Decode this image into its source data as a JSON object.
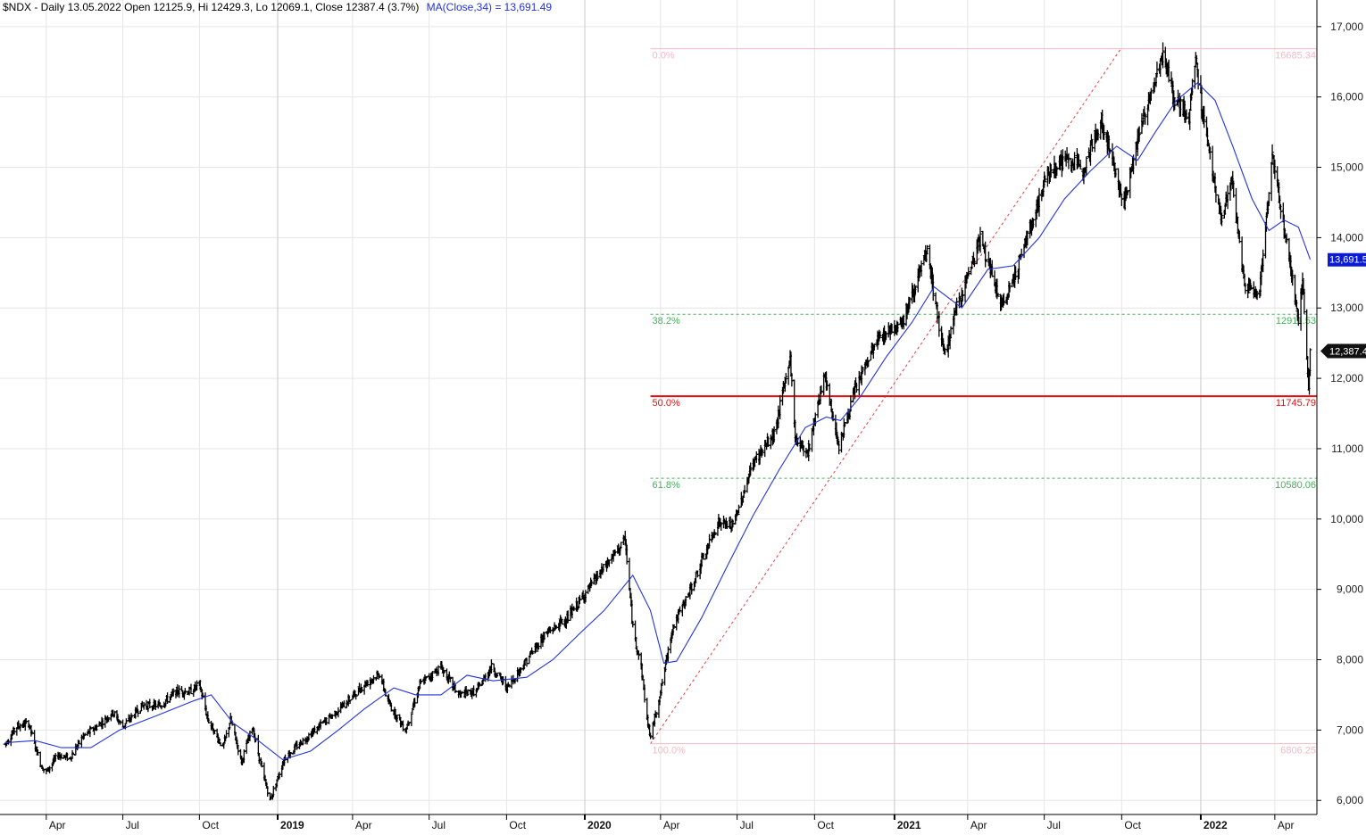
{
  "header": {
    "title": "$NDX - Daily 13.05.2022 Open 12125.9, Hi 12429.3, Lo 12069.1, Close 12387.4 (3.7%)",
    "ma_label": "MA(Close,34) = 13,691.49"
  },
  "colors": {
    "price": "#000000",
    "ma": "#2233dd",
    "grid": "#e6e6e6",
    "year_line": "#c8c8c8",
    "fib_outer": "#f4b8c4",
    "fib_green": "#43b05a",
    "fib_main": "#e01010",
    "trend": "#e84040",
    "ma_tag_bg": "#0a1ad6",
    "close_tag_bg": "#111111"
  },
  "badges": {
    "ma_value": "13,691.5",
    "close_value": "12,387.4"
  },
  "chart_data": {
    "type": "line",
    "title": "$NDX - Daily 13.05.2022",
    "ylim": [
      5800,
      17150
    ],
    "yscale": "linear",
    "grid": true,
    "y_ticks": [
      6000,
      7000,
      8000,
      9000,
      10000,
      11000,
      12000,
      13000,
      14000,
      15000,
      16000,
      17000
    ],
    "y_tick_labels": [
      "6,000",
      "7,000",
      "8,000",
      "9,000",
      "10,000",
      "11,000",
      "12,000",
      "13,000",
      "14,000",
      "15,000",
      "16,000",
      "17,000"
    ],
    "x_labels": [
      {
        "label": "Apr",
        "date": "2018-04-02",
        "year": false
      },
      {
        "label": "Jul",
        "date": "2018-07-02",
        "year": false
      },
      {
        "label": "Oct",
        "date": "2018-10-01",
        "year": false
      },
      {
        "label": "2019",
        "date": "2019-01-02",
        "year": true
      },
      {
        "label": "Apr",
        "date": "2019-04-01",
        "year": false
      },
      {
        "label": "Jul",
        "date": "2019-07-01",
        "year": false
      },
      {
        "label": "Oct",
        "date": "2019-10-01",
        "year": false
      },
      {
        "label": "2020",
        "date": "2020-01-02",
        "year": true
      },
      {
        "label": "Apr",
        "date": "2020-04-01",
        "year": false
      },
      {
        "label": "Jul",
        "date": "2020-07-01",
        "year": false
      },
      {
        "label": "Oct",
        "date": "2020-10-01",
        "year": false
      },
      {
        "label": "2021",
        "date": "2021-01-04",
        "year": true
      },
      {
        "label": "Apr",
        "date": "2021-04-01",
        "year": false
      },
      {
        "label": "Jul",
        "date": "2021-07-01",
        "year": false
      },
      {
        "label": "Oct",
        "date": "2021-10-01",
        "year": false
      },
      {
        "label": "2022",
        "date": "2022-01-03",
        "year": true
      },
      {
        "label": "Apr",
        "date": "2022-04-01",
        "year": false
      }
    ],
    "series": [
      {
        "name": "$NDX",
        "style": "ohlc-bars",
        "points": [
          [
            "2018-02-12",
            6800
          ],
          [
            "2018-02-26",
            7050
          ],
          [
            "2018-03-12",
            7100
          ],
          [
            "2018-03-19",
            6800
          ],
          [
            "2018-03-27",
            6500
          ],
          [
            "2018-04-02",
            6400
          ],
          [
            "2018-04-16",
            6650
          ],
          [
            "2018-04-30",
            6600
          ],
          [
            "2018-05-15",
            6900
          ],
          [
            "2018-06-01",
            7050
          ],
          [
            "2018-06-20",
            7250
          ],
          [
            "2018-07-02",
            7050
          ],
          [
            "2018-07-25",
            7350
          ],
          [
            "2018-08-15",
            7350
          ],
          [
            "2018-09-04",
            7550
          ],
          [
            "2018-09-20",
            7550
          ],
          [
            "2018-10-01",
            7650
          ],
          [
            "2018-10-11",
            7150
          ],
          [
            "2018-10-29",
            6750
          ],
          [
            "2018-11-07",
            7150
          ],
          [
            "2018-11-20",
            6550
          ],
          [
            "2018-12-03",
            7050
          ],
          [
            "2018-12-14",
            6450
          ],
          [
            "2018-12-24",
            6000
          ],
          [
            "2019-01-10",
            6600
          ],
          [
            "2019-02-01",
            6850
          ],
          [
            "2019-02-25",
            7100
          ],
          [
            "2019-03-21",
            7350
          ],
          [
            "2019-04-15",
            7650
          ],
          [
            "2019-05-03",
            7800
          ],
          [
            "2019-05-13",
            7400
          ],
          [
            "2019-06-03",
            7000
          ],
          [
            "2019-06-20",
            7650
          ],
          [
            "2019-07-15",
            7900
          ],
          [
            "2019-08-05",
            7500
          ],
          [
            "2019-08-26",
            7550
          ],
          [
            "2019-09-13",
            7900
          ],
          [
            "2019-10-02",
            7600
          ],
          [
            "2019-10-25",
            8000
          ],
          [
            "2019-11-15",
            8350
          ],
          [
            "2019-12-13",
            8600
          ],
          [
            "2020-01-15",
            9150
          ],
          [
            "2020-02-19",
            9700
          ],
          [
            "2020-02-28",
            8450
          ],
          [
            "2020-03-09",
            7900
          ],
          [
            "2020-03-16",
            7150
          ],
          [
            "2020-03-20",
            6900
          ],
          [
            "2020-04-01",
            7550
          ],
          [
            "2020-04-15",
            8450
          ],
          [
            "2020-05-05",
            8950
          ],
          [
            "2020-06-08",
            9950
          ],
          [
            "2020-06-26",
            9900
          ],
          [
            "2020-07-20",
            10800
          ],
          [
            "2020-08-14",
            11200
          ],
          [
            "2020-09-02",
            12300
          ],
          [
            "2020-09-08",
            11150
          ],
          [
            "2020-09-23",
            10950
          ],
          [
            "2020-10-12",
            12050
          ],
          [
            "2020-10-30",
            11050
          ],
          [
            "2020-11-20",
            11900
          ],
          [
            "2020-12-15",
            12550
          ],
          [
            "2021-01-15",
            12850
          ],
          [
            "2021-02-12",
            13800
          ],
          [
            "2021-03-04",
            12300
          ],
          [
            "2021-03-19",
            13000
          ],
          [
            "2021-04-16",
            14000
          ],
          [
            "2021-05-12",
            13000
          ],
          [
            "2021-06-01",
            13650
          ],
          [
            "2021-07-06",
            14950
          ],
          [
            "2021-07-26",
            15100
          ],
          [
            "2021-08-16",
            15000
          ],
          [
            "2021-09-07",
            15650
          ],
          [
            "2021-10-04",
            14500
          ],
          [
            "2021-10-20",
            15400
          ],
          [
            "2021-11-19",
            16650
          ],
          [
            "2021-12-01",
            16000
          ],
          [
            "2021-12-20",
            15700
          ],
          [
            "2021-12-28",
            16550
          ],
          [
            "2022-01-05",
            15800
          ],
          [
            "2022-01-27",
            14250
          ],
          [
            "2022-02-09",
            14800
          ],
          [
            "2022-02-24",
            13300
          ],
          [
            "2022-03-14",
            13250
          ],
          [
            "2022-03-29",
            15150
          ],
          [
            "2022-04-13",
            14100
          ],
          [
            "2022-04-29",
            12850
          ],
          [
            "2022-05-04",
            13350
          ],
          [
            "2022-05-11",
            11900
          ],
          [
            "2022-05-13",
            12387
          ]
        ]
      },
      {
        "name": "MA(Close,34)",
        "style": "line",
        "points": [
          [
            "2018-02-12",
            6820
          ],
          [
            "2018-03-20",
            6850
          ],
          [
            "2018-04-20",
            6750
          ],
          [
            "2018-05-25",
            6750
          ],
          [
            "2018-06-28",
            7000
          ],
          [
            "2018-08-10",
            7200
          ],
          [
            "2018-09-25",
            7420
          ],
          [
            "2018-10-15",
            7500
          ],
          [
            "2018-11-10",
            7100
          ],
          [
            "2018-12-10",
            6850
          ],
          [
            "2019-01-08",
            6580
          ],
          [
            "2019-02-10",
            6700
          ],
          [
            "2019-03-15",
            7000
          ],
          [
            "2019-04-15",
            7300
          ],
          [
            "2019-05-20",
            7600
          ],
          [
            "2019-06-15",
            7500
          ],
          [
            "2019-07-15",
            7500
          ],
          [
            "2019-08-15",
            7780
          ],
          [
            "2019-09-15",
            7700
          ],
          [
            "2019-10-25",
            7750
          ],
          [
            "2019-11-25",
            8000
          ],
          [
            "2019-12-25",
            8350
          ],
          [
            "2020-01-25",
            8700
          ],
          [
            "2020-02-28",
            9200
          ],
          [
            "2020-03-20",
            8700
          ],
          [
            "2020-04-05",
            7950
          ],
          [
            "2020-04-20",
            7980
          ],
          [
            "2020-05-20",
            8600
          ],
          [
            "2020-06-20",
            9350
          ],
          [
            "2020-07-20",
            10050
          ],
          [
            "2020-08-20",
            10700
          ],
          [
            "2020-09-20",
            11300
          ],
          [
            "2020-10-15",
            11450
          ],
          [
            "2020-11-01",
            11400
          ],
          [
            "2020-11-25",
            11750
          ],
          [
            "2020-12-25",
            12300
          ],
          [
            "2021-01-25",
            12800
          ],
          [
            "2021-02-20",
            13300
          ],
          [
            "2021-03-25",
            13000
          ],
          [
            "2021-04-25",
            13550
          ],
          [
            "2021-05-25",
            13600
          ],
          [
            "2021-06-25",
            14000
          ],
          [
            "2021-07-25",
            14550
          ],
          [
            "2021-08-25",
            14950
          ],
          [
            "2021-09-25",
            15300
          ],
          [
            "2021-10-20",
            15100
          ],
          [
            "2021-11-10",
            15500
          ],
          [
            "2021-12-05",
            15950
          ],
          [
            "2021-12-30",
            16200
          ],
          [
            "2022-01-20",
            15950
          ],
          [
            "2022-02-10",
            15300
          ],
          [
            "2022-03-05",
            14550
          ],
          [
            "2022-03-25",
            14100
          ],
          [
            "2022-04-12",
            14250
          ],
          [
            "2022-04-29",
            14150
          ],
          [
            "2022-05-13",
            13691
          ]
        ]
      }
    ],
    "fibonacci": {
      "start": {
        "date": "2020-03-20",
        "value": 6806.25
      },
      "end": {
        "date": "2021-09-30",
        "value": 16685.34
      },
      "levels": [
        {
          "label": "0.0%",
          "value": 16685.34,
          "value_label": "16685.34",
          "style": "outer"
        },
        {
          "label": "38.2%",
          "value": 12911.53,
          "value_label": "12911.53",
          "style": "green"
        },
        {
          "label": "50.0%",
          "value": 11745.79,
          "value_label": "11745.79",
          "style": "main"
        },
        {
          "label": "61.8%",
          "value": 10580.06,
          "value_label": "10580.06",
          "style": "green"
        },
        {
          "label": "100.0%",
          "value": 6806.25,
          "value_label": "6806.25",
          "style": "outer"
        }
      ]
    },
    "last_close": 12387.4,
    "ma_last": 13691.49
  }
}
